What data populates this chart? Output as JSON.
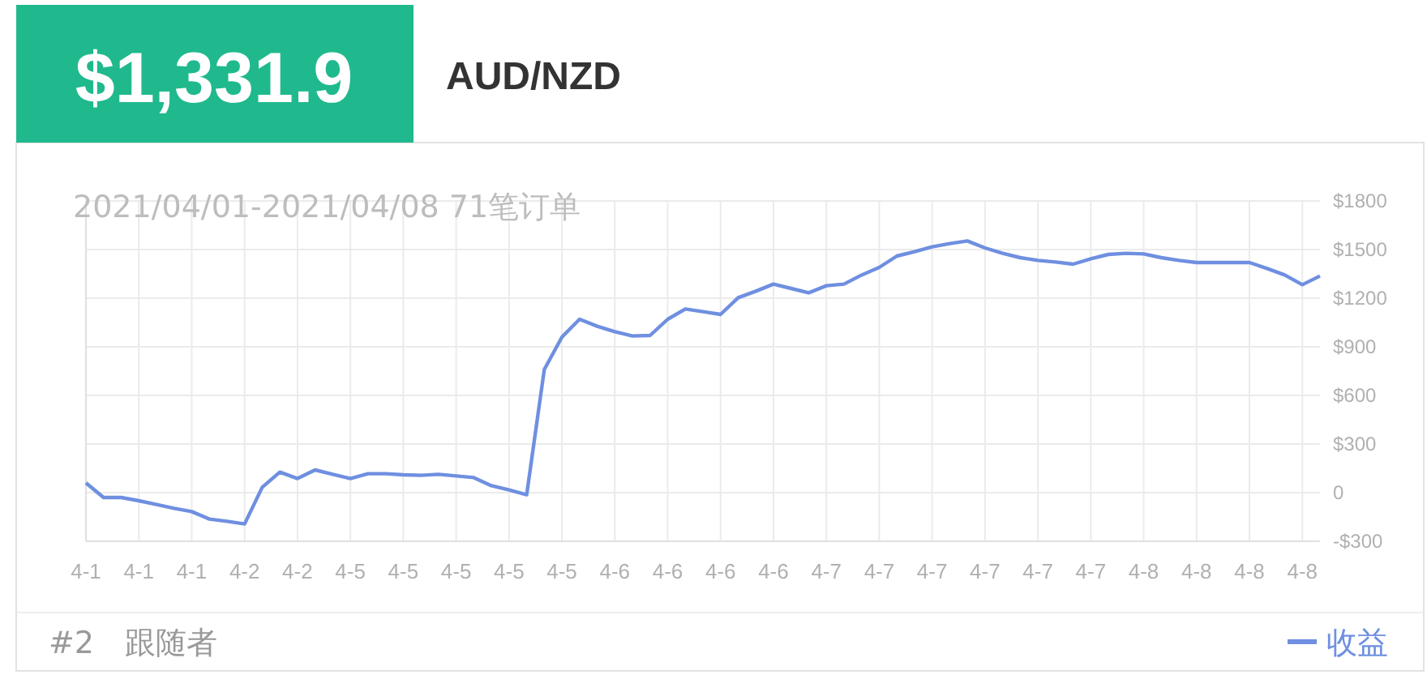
{
  "chart_data": {
    "type": "line",
    "title": "$1,331.9",
    "subtitle": "AUD/NZD",
    "annotations": [
      "2021/04/01-2021/04/08 71笔订单",
      "#2　跟随者"
    ],
    "categories": [
      "4-1",
      null,
      null,
      "4-1",
      null,
      null,
      "4-1",
      null,
      null,
      "4-2",
      null,
      null,
      "4-2",
      null,
      null,
      "4-5",
      null,
      null,
      "4-5",
      null,
      null,
      "4-5",
      null,
      null,
      "4-5",
      null,
      null,
      "4-5",
      null,
      null,
      "4-6",
      null,
      null,
      "4-6",
      null,
      null,
      "4-6",
      null,
      null,
      "4-6",
      null,
      null,
      "4-7",
      null,
      null,
      "4-7",
      null,
      null,
      "4-7",
      null,
      null,
      "4-7",
      null,
      null,
      "4-7",
      null,
      null,
      "4-7",
      null,
      null,
      "4-8",
      null,
      null,
      "4-8",
      null,
      null,
      "4-8",
      null,
      null,
      "4-8",
      null
    ],
    "series": [
      {
        "name": "收益",
        "color": "#6f8fe0",
        "values": [
          60,
          -30,
          -30,
          -50,
          -73,
          -97,
          -117,
          -163,
          -177,
          -193,
          33,
          127,
          87,
          140,
          113,
          87,
          117,
          117,
          110,
          107,
          113,
          103,
          93,
          43,
          17,
          -13,
          760,
          960,
          1070,
          1027,
          993,
          967,
          970,
          1070,
          1133,
          1117,
          1100,
          1203,
          1243,
          1287,
          1260,
          1233,
          1277,
          1287,
          1343,
          1390,
          1460,
          1487,
          1517,
          1537,
          1553,
          1510,
          1477,
          1450,
          1433,
          1423,
          1410,
          1443,
          1470,
          1477,
          1473,
          1450,
          1433,
          1420,
          1420,
          1420,
          1420,
          1383,
          1343,
          1283,
          1337
        ]
      }
    ],
    "ylim": [
      -300,
      1800
    ],
    "yticks": [
      {
        "value": -300,
        "label": "-$300"
      },
      0,
      {
        "value": 300,
        "label": "$300"
      },
      {
        "value": 600,
        "label": "$600"
      },
      {
        "value": 900,
        "label": "$900"
      },
      {
        "value": 1200,
        "label": "$1200"
      },
      {
        "value": 1500,
        "label": "$1500"
      },
      {
        "value": 1800,
        "label": "$1800"
      }
    ],
    "grid": true,
    "legend": "bottom right",
    "marker": "none",
    "line_style": "solid"
  }
}
